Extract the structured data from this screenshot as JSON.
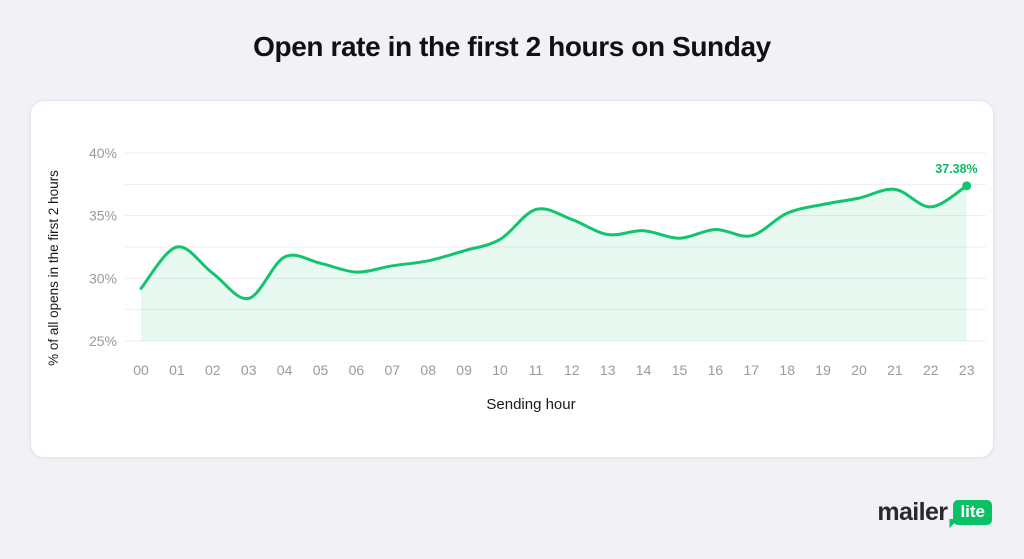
{
  "header": {
    "title": "Open rate in the first 2 hours on Sunday"
  },
  "chart_data": {
    "type": "area",
    "xlabel": "Sending hour",
    "ylabel": "% of all opens in the first 2 hours",
    "categories": [
      "00",
      "01",
      "02",
      "03",
      "04",
      "05",
      "06",
      "07",
      "08",
      "09",
      "10",
      "11",
      "12",
      "13",
      "14",
      "15",
      "16",
      "17",
      "18",
      "19",
      "20",
      "21",
      "22",
      "23"
    ],
    "values": [
      29.2,
      32.5,
      30.4,
      28.4,
      31.7,
      31.2,
      30.5,
      31.0,
      31.4,
      32.2,
      33.1,
      35.5,
      34.7,
      33.5,
      33.8,
      33.2,
      33.9,
      33.4,
      35.2,
      35.9,
      36.4,
      37.1,
      35.7,
      37.38
    ],
    "ylim": [
      25,
      40
    ],
    "yticks_major": [
      40,
      35,
      30,
      25
    ],
    "yticks_minor": [
      37.5,
      32.5,
      27.5
    ],
    "ytick_suffix": "%",
    "grid": "horizontal",
    "legend": "none",
    "annotation": {
      "label": "37.38%",
      "category": "23",
      "value": 37.38
    },
    "colors": {
      "line": "#12c46d",
      "area": "rgba(18,196,109,0.10)",
      "grid": "#ededf2",
      "tick_text": "#989aa4",
      "axis_title": "#17181c",
      "annotation": "#10b866",
      "marker": "#12c46d"
    }
  },
  "footer": {
    "logo_text": "mailer",
    "logo_badge": "lite",
    "badge_color": "#0ac166"
  }
}
